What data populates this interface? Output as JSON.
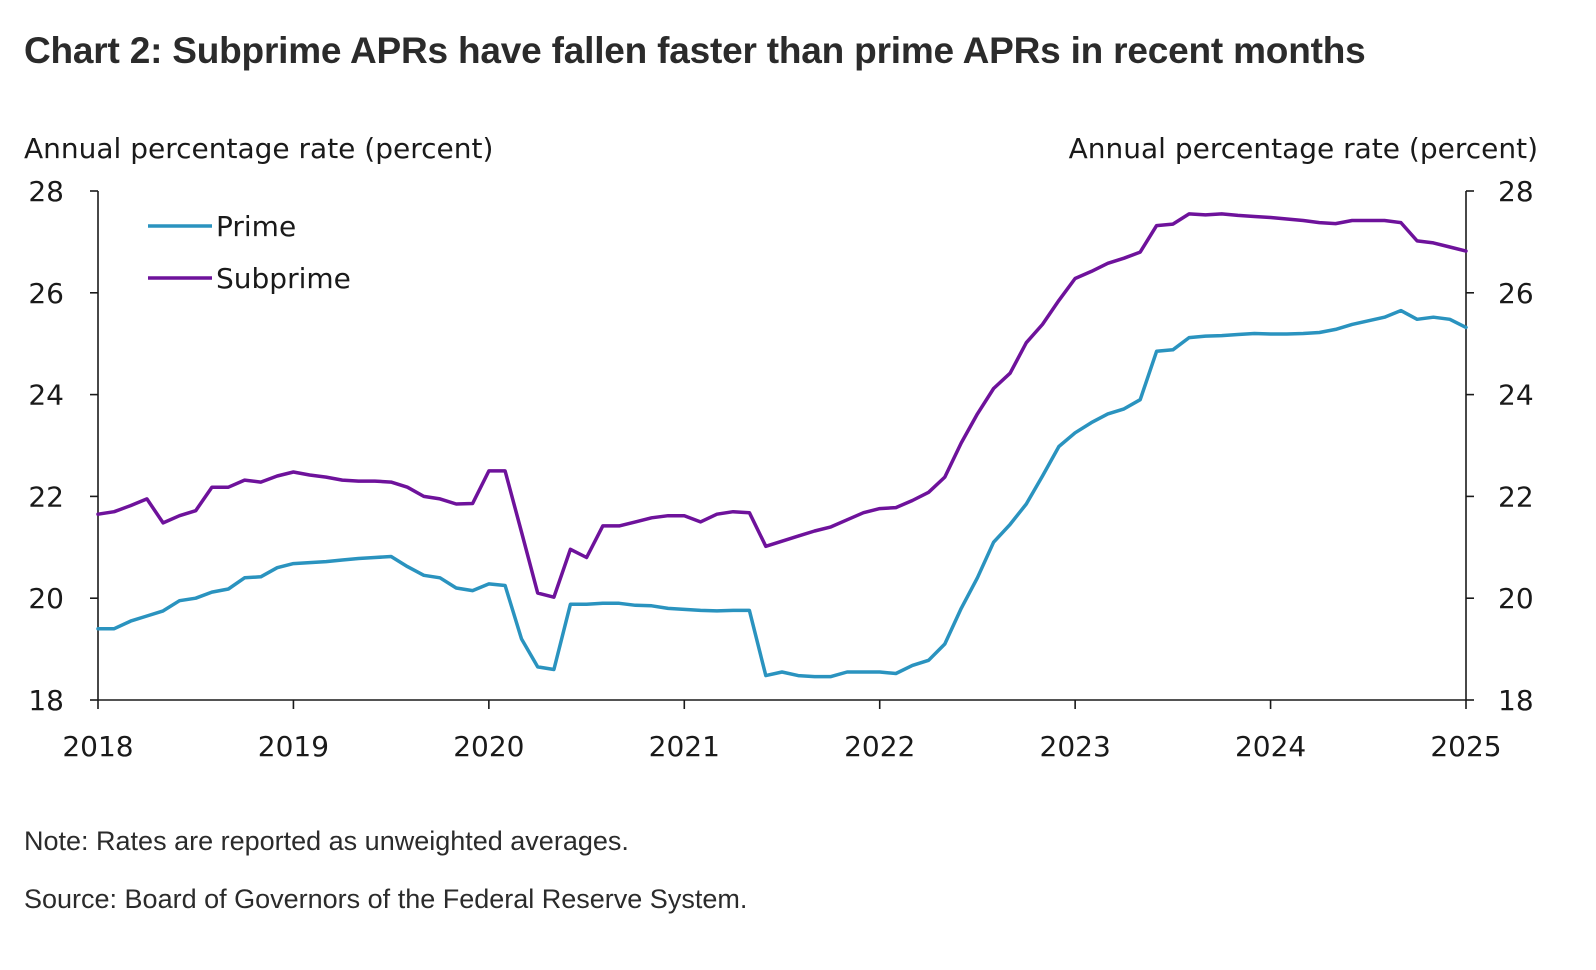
{
  "title": "Chart 2: Subprime APRs have fallen faster than prime APRs in recent months",
  "note": "Note: Rates are reported as unweighted averages.",
  "source": "Source: Board of Governors of the Federal Reserve System.",
  "chart_data": {
    "type": "line",
    "ylabel_left": "Annual percentage rate (percent)",
    "ylabel_right": "Annual percentage rate (percent)",
    "xlim": [
      2018,
      2025
    ],
    "ylim": [
      18,
      28
    ],
    "x_ticks": [
      "2018",
      "2019",
      "2020",
      "2021",
      "2022",
      "2023",
      "2024",
      "2025"
    ],
    "y_ticks": [
      "18",
      "20",
      "22",
      "24",
      "26",
      "28"
    ],
    "colors": {
      "prime": "#2a93bf",
      "subprime": "#6e129b"
    },
    "series": [
      {
        "name": "Prime",
        "color": "#2a93bf",
        "x": [
          2018.0,
          2018.083,
          2018.167,
          2018.25,
          2018.333,
          2018.417,
          2018.5,
          2018.583,
          2018.667,
          2018.75,
          2018.833,
          2018.917,
          2019.0,
          2019.083,
          2019.167,
          2019.25,
          2019.333,
          2019.417,
          2019.5,
          2019.583,
          2019.667,
          2019.75,
          2019.833,
          2019.917,
          2020.0,
          2020.083,
          2020.167,
          2020.25,
          2020.333,
          2020.417,
          2020.5,
          2020.583,
          2020.667,
          2020.75,
          2020.833,
          2020.917,
          2021.0,
          2021.083,
          2021.167,
          2021.25,
          2021.333,
          2021.417,
          2021.5,
          2021.583,
          2021.667,
          2021.75,
          2021.833,
          2021.917,
          2022.0,
          2022.083,
          2022.167,
          2022.25,
          2022.333,
          2022.417,
          2022.5,
          2022.583,
          2022.667,
          2022.75,
          2022.833,
          2022.917,
          2023.0,
          2023.083,
          2023.167,
          2023.25,
          2023.333,
          2023.417,
          2023.5,
          2023.583,
          2023.667,
          2023.75,
          2023.833,
          2023.917,
          2024.0,
          2024.083,
          2024.167,
          2024.25,
          2024.333,
          2024.417,
          2024.5,
          2024.583,
          2024.667,
          2024.75,
          2024.833,
          2024.917,
          2025.0
        ],
        "values": [
          19.4,
          19.4,
          19.55,
          19.65,
          19.75,
          19.95,
          20.0,
          20.12,
          20.18,
          20.4,
          20.42,
          20.6,
          20.68,
          20.7,
          20.72,
          20.75,
          20.78,
          20.8,
          20.82,
          20.62,
          20.45,
          20.4,
          20.2,
          20.15,
          20.28,
          20.25,
          19.2,
          18.65,
          18.6,
          19.88,
          19.88,
          19.9,
          19.9,
          19.86,
          19.85,
          19.8,
          19.78,
          19.76,
          19.75,
          19.76,
          19.76,
          18.48,
          18.55,
          18.48,
          18.46,
          18.46,
          18.55,
          18.55,
          18.55,
          18.52,
          18.68,
          18.78,
          19.1,
          19.8,
          20.4,
          21.1,
          21.45,
          21.85,
          22.4,
          22.98,
          23.25,
          23.45,
          23.62,
          23.72,
          23.9,
          24.85,
          24.88,
          25.12,
          25.15,
          25.16,
          25.18,
          25.2,
          25.19,
          25.19,
          25.2,
          25.22,
          25.28,
          25.38,
          25.45,
          25.52,
          25.65,
          25.48,
          25.52,
          25.48,
          25.32
        ]
      },
      {
        "name": "Subprime",
        "color": "#6e129b",
        "x": [
          2018.0,
          2018.083,
          2018.167,
          2018.25,
          2018.333,
          2018.417,
          2018.5,
          2018.583,
          2018.667,
          2018.75,
          2018.833,
          2018.917,
          2019.0,
          2019.083,
          2019.167,
          2019.25,
          2019.333,
          2019.417,
          2019.5,
          2019.583,
          2019.667,
          2019.75,
          2019.833,
          2019.917,
          2020.0,
          2020.083,
          2020.167,
          2020.25,
          2020.333,
          2020.417,
          2020.5,
          2020.583,
          2020.667,
          2020.75,
          2020.833,
          2020.917,
          2021.0,
          2021.083,
          2021.167,
          2021.25,
          2021.333,
          2021.417,
          2021.5,
          2021.583,
          2021.667,
          2021.75,
          2021.833,
          2021.917,
          2022.0,
          2022.083,
          2022.167,
          2022.25,
          2022.333,
          2022.417,
          2022.5,
          2022.583,
          2022.667,
          2022.75,
          2022.833,
          2022.917,
          2023.0,
          2023.083,
          2023.167,
          2023.25,
          2023.333,
          2023.417,
          2023.5,
          2023.583,
          2023.667,
          2023.75,
          2023.833,
          2023.917,
          2024.0,
          2024.083,
          2024.167,
          2024.25,
          2024.333,
          2024.417,
          2024.5,
          2024.583,
          2024.667,
          2024.75,
          2024.833,
          2024.917,
          2025.0
        ],
        "values": [
          21.65,
          21.7,
          21.82,
          21.95,
          21.48,
          21.62,
          21.72,
          22.18,
          22.18,
          22.32,
          22.28,
          22.4,
          22.48,
          22.42,
          22.38,
          22.32,
          22.3,
          22.3,
          22.28,
          22.18,
          22.0,
          21.95,
          21.85,
          21.86,
          22.5,
          22.5,
          21.3,
          20.1,
          20.02,
          20.96,
          20.8,
          21.42,
          21.42,
          21.5,
          21.58,
          21.62,
          21.62,
          21.5,
          21.65,
          21.7,
          21.68,
          21.02,
          21.12,
          21.22,
          21.32,
          21.4,
          21.54,
          21.68,
          21.76,
          21.78,
          21.92,
          22.08,
          22.38,
          23.05,
          23.62,
          24.12,
          24.42,
          25.02,
          25.38,
          25.85,
          26.28,
          26.42,
          26.58,
          26.68,
          26.8,
          27.32,
          27.35,
          27.55,
          27.53,
          27.55,
          27.52,
          27.5,
          27.48,
          27.45,
          27.42,
          27.38,
          27.36,
          27.42,
          27.42,
          27.42,
          27.38,
          27.02,
          26.98,
          26.9,
          26.82
        ]
      }
    ]
  }
}
